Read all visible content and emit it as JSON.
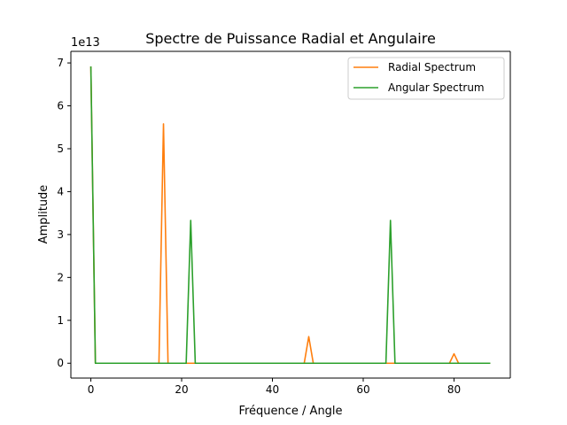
{
  "chart_data": {
    "type": "line",
    "title": "Spectre de Puissance Radial et Angulaire",
    "xlabel": "Fréquence / Angle",
    "ylabel": "Amplitude",
    "y_offset_label": "1e13",
    "xlim": [
      -4.4,
      92.4
    ],
    "ylim": [
      -0.346,
      7.27
    ],
    "xticks": [
      0,
      20,
      40,
      60,
      80
    ],
    "yticks": [
      0,
      1,
      2,
      3,
      4,
      5,
      6,
      7
    ],
    "grid": false,
    "legend_position": "top-right",
    "series": [
      {
        "name": "Radial Spectrum",
        "color": "#ff7f0e",
        "points": [
          [
            0,
            6.92
          ],
          [
            1,
            0
          ],
          [
            15,
            0
          ],
          [
            16,
            5.58
          ],
          [
            17,
            0
          ],
          [
            47,
            0
          ],
          [
            48,
            0.62
          ],
          [
            49,
            0
          ],
          [
            79,
            0
          ],
          [
            80,
            0.22
          ],
          [
            81,
            0
          ],
          [
            88,
            0
          ]
        ]
      },
      {
        "name": "Angular Spectrum",
        "color": "#2ca02c",
        "points": [
          [
            0,
            6.92
          ],
          [
            1,
            0
          ],
          [
            21,
            0
          ],
          [
            22,
            3.33
          ],
          [
            23,
            0
          ],
          [
            65,
            0
          ],
          [
            66,
            3.33
          ],
          [
            67,
            0
          ],
          [
            88,
            0
          ]
        ]
      }
    ]
  }
}
